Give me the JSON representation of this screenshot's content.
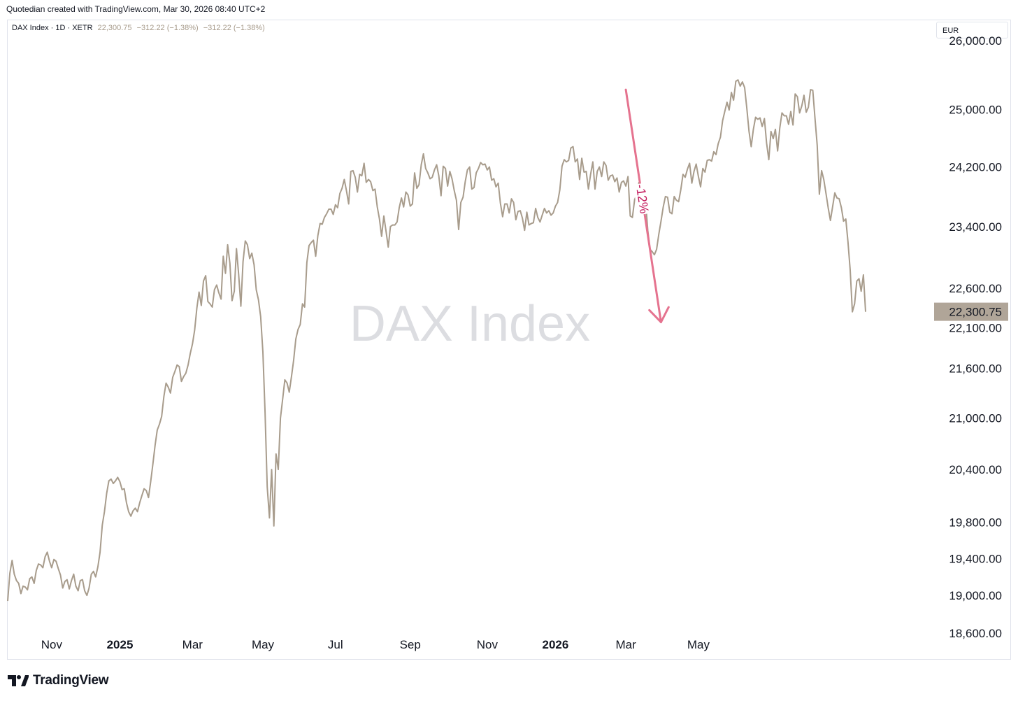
{
  "header": {
    "credit": "Quotedian created with TradingView.com, Mar 30, 2026 08:40 UTC+2"
  },
  "legend": {
    "symbol": "DAX Index · 1D · XETR",
    "last": "22,300.75",
    "change": "−312.22 (−1.38%)",
    "change2": "−312.22 (−1.38%)"
  },
  "currency": "EUR",
  "watermark": "DAX Index",
  "footer": {
    "brand": "TradingView"
  },
  "colors": {
    "line": "#a89c8c",
    "annotation": "#e5738f",
    "annotation_text": "#c2185b",
    "price_badge": "#b0a598",
    "watermark": "#dcdde1"
  },
  "chart_data": {
    "type": "line",
    "series": [
      {
        "values": [
          18940,
          19240,
          19380,
          19230,
          19160,
          19130,
          19020,
          19100,
          19090,
          19060,
          19180,
          19200,
          19130,
          19270,
          19340,
          19330,
          19300,
          19420,
          19470,
          19370,
          19300,
          19390,
          19370,
          19290,
          19220,
          19080,
          19150,
          19170,
          19070,
          19160,
          19230,
          19100,
          19050,
          19160,
          19170,
          19050,
          19000,
          19080,
          19230,
          19260,
          19200,
          19310,
          19470,
          19770,
          19920,
          20130,
          20270,
          20290,
          20240,
          20270,
          20310,
          20260,
          20170,
          20180,
          20020,
          19920,
          19870,
          19930,
          19960,
          19920,
          20020,
          20100,
          20180,
          20160,
          20080,
          20260,
          20460,
          20680,
          20860,
          20930,
          21020,
          21260,
          21420,
          21370,
          21300,
          21490,
          21560,
          21640,
          21620,
          21440,
          21500,
          21540,
          21640,
          21780,
          21900,
          22070,
          22350,
          22550,
          22380,
          22690,
          22760,
          22430,
          22400,
          22360,
          22580,
          22640,
          22540,
          22460,
          23010,
          22790,
          23160,
          22920,
          22440,
          22560,
          23110,
          22780,
          22370,
          22940,
          23210,
          23160,
          22980,
          23050,
          22900,
          22580,
          22450,
          22240,
          21800,
          21070,
          20200,
          19850,
          20400,
          19760,
          20580,
          20400,
          21000,
          21230,
          21460,
          21420,
          21310,
          21500,
          21700,
          21960,
          22080,
          22140,
          22400,
          22360,
          22930,
          23150,
          23190,
          23220,
          23010,
          23280,
          23440,
          23430,
          23520,
          23570,
          23630,
          23630,
          23560,
          23690,
          23650,
          23840,
          23910,
          24030,
          23880,
          23700,
          24140,
          24150,
          24060,
          23860,
          24100,
          24080,
          24250,
          23990,
          24030,
          24000,
          23880,
          23900,
          23660,
          23500,
          23270,
          23540,
          23340,
          23130,
          23400,
          23420,
          23420,
          23460,
          23650,
          23780,
          23660,
          23860,
          23820,
          23670,
          23700,
          24120,
          23910,
          23960,
          24230,
          24380,
          24180,
          24120,
          24040,
          24060,
          24160,
          24230,
          24080,
          23810,
          24210,
          24180,
          23940,
          24140,
          24040,
          23880,
          23750,
          23360,
          23720,
          23790,
          24000,
          24160,
          24200,
          23900,
          23920,
          24120,
          24180,
          24260,
          24230,
          24240,
          24160,
          24200,
          24020,
          24040,
          23930,
          23980,
          23710,
          23530,
          23700,
          23700,
          23580,
          23770,
          23720,
          23490,
          23600,
          23610,
          23510,
          23350,
          23590,
          23420,
          23440,
          23450,
          23640,
          23520,
          23460,
          23550,
          23640,
          23580,
          23610,
          23550,
          23580,
          23670,
          23720,
          23890,
          24210,
          24300,
          24270,
          24290,
          24460,
          24480,
          24270,
          24310,
          24030,
          24320,
          24130,
          24140,
          23900,
          24100,
          24270,
          23900,
          24140,
          24200,
          24070,
          24270,
          24220,
          24020,
          24080,
          24090,
          24000,
          24050,
          23860,
          23990,
          24010,
          23940,
          24070,
          23540,
          23520,
          23760,
          23820,
          23990,
          23750,
          23790,
          23730,
          23350,
          23100,
          23070,
          23030,
          23100,
          23300,
          23470,
          23660,
          23800,
          23790,
          23590,
          23570,
          23800,
          23750,
          23730,
          23890,
          24100,
          24060,
          24170,
          24250,
          23980,
          24140,
          24240,
          24070,
          23930,
          24180,
          24130,
          24290,
          24300,
          24280,
          24410,
          24370,
          24520,
          24610,
          24840,
          24970,
          25100,
          24990,
          25240,
          25130,
          25400,
          25420,
          25330,
          25390,
          25310,
          25020,
          24690,
          24480,
          24720,
          24890,
          24860,
          24880,
          24760,
          24870,
          24530,
          24300,
          24690,
          24590,
          24720,
          24420,
          24740,
          24950,
          24910,
          24910,
          24790,
          24970,
          24780,
          25220,
          25180,
          24950,
          25050,
          25200,
          24960,
          25030,
          25280,
          25270,
          24880,
          24500,
          23830,
          24150,
          24030,
          23840,
          23650,
          23480,
          23660,
          23850,
          23780,
          23770,
          23650,
          23470,
          23500,
          23200,
          22830,
          22300,
          22400,
          22690,
          22720,
          22560,
          22770,
          22300
        ]
      }
    ],
    "x_ticks": [
      {
        "label": "Nov",
        "index": 20
      },
      {
        "label": "2025",
        "index": 51,
        "bold": true
      },
      {
        "label": "Mar",
        "index": 84
      },
      {
        "label": "May",
        "index": 116
      },
      {
        "label": "Jul",
        "index": 149
      },
      {
        "label": "Sep",
        "index": 183
      },
      {
        "label": "Nov",
        "index": 218
      },
      {
        "label": "2026",
        "index": 249,
        "bold": true
      },
      {
        "label": "Mar",
        "index": 281
      },
      {
        "label": "May",
        "index": 314
      }
    ],
    "y_ticks": [
      {
        "label": "25,000.00",
        "value": 25000
      },
      {
        "label": "24,200.00",
        "value": 24200
      },
      {
        "label": "23,400.00",
        "value": 23400
      },
      {
        "label": "22,600.00",
        "value": 22600
      },
      {
        "label": "22,100.00",
        "value": 22100
      },
      {
        "label": "21,600.00",
        "value": 21600
      },
      {
        "label": "21,000.00",
        "value": 21000
      },
      {
        "label": "20,400.00",
        "value": 20400
      },
      {
        "label": "19,800.00",
        "value": 19800
      },
      {
        "label": "19,400.00",
        "value": 19400
      },
      {
        "label": "19,000.00",
        "value": 19000
      },
      {
        "label": "18,600.00",
        "value": 18600
      }
    ],
    "y_top_partial_label": "26,000.00",
    "y_scale": "log",
    "ylim": [
      18330,
      26300
    ],
    "last_price": {
      "label": "22,300.75",
      "value": 22300.75
    },
    "annotation": {
      "text": "-12%",
      "from": {
        "index": 281,
        "value": 25280
      },
      "to": {
        "index": 297,
        "value": 22170
      }
    },
    "grid": false
  }
}
